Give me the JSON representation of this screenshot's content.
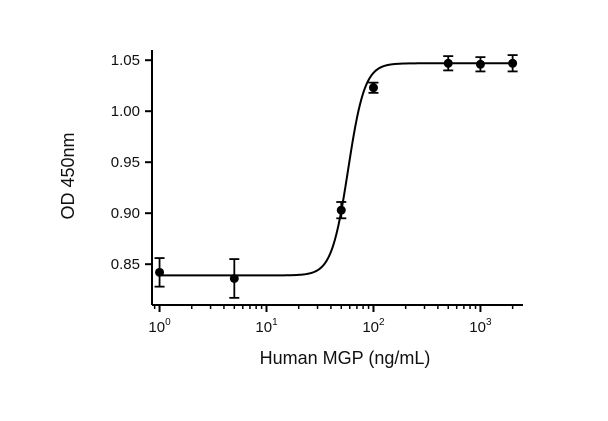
{
  "chart_data": {
    "type": "scatter",
    "title": "",
    "xlabel": "Human MGP (ng/mL)",
    "ylabel": "OD 450nm",
    "x_scale": "log",
    "xlim": [
      0.85,
      2500
    ],
    "ylim": [
      0.81,
      1.06
    ],
    "x_ticks": [
      {
        "value": 1,
        "base": "10",
        "exp": "0"
      },
      {
        "value": 10,
        "base": "10",
        "exp": "1"
      },
      {
        "value": 100,
        "base": "10",
        "exp": "2"
      },
      {
        "value": 1000,
        "base": "10",
        "exp": "3"
      }
    ],
    "y_ticks": [
      {
        "value": 0.85,
        "label": "0.85"
      },
      {
        "value": 0.9,
        "label": "0.90"
      },
      {
        "value": 0.95,
        "label": "0.95"
      },
      {
        "value": 1.0,
        "label": "1.00"
      },
      {
        "value": 1.05,
        "label": "1.05"
      }
    ],
    "grid": false,
    "series": [
      {
        "x": [
          1,
          5,
          50,
          100,
          500,
          1000,
          2000
        ],
        "y": [
          0.842,
          0.836,
          0.903,
          1.023,
          1.047,
          1.046,
          1.047
        ],
        "error": [
          0.014,
          0.019,
          0.008,
          0.005,
          0.007,
          0.007,
          0.008
        ]
      }
    ],
    "fit": {
      "model": "4PL",
      "bottom": 0.839,
      "top": 1.047,
      "ec50": 58,
      "hill": 5.6
    }
  }
}
